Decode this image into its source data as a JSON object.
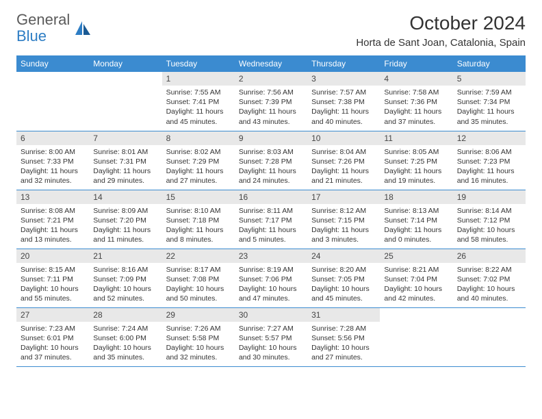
{
  "logo": {
    "line1": "General",
    "line2": "Blue"
  },
  "title": "October 2024",
  "location": "Horta de Sant Joan, Catalonia, Spain",
  "colors": {
    "header_bg": "#3b8bd0",
    "header_text": "#ffffff",
    "daynum_bg": "#e8e8e8",
    "border": "#3b8bd0",
    "logo_gray": "#5a5a5a",
    "logo_blue": "#2d7dc4"
  },
  "weekdays": [
    "Sunday",
    "Monday",
    "Tuesday",
    "Wednesday",
    "Thursday",
    "Friday",
    "Saturday"
  ],
  "weeks": [
    [
      {
        "blank": true
      },
      {
        "blank": true
      },
      {
        "num": "1",
        "sunrise": "Sunrise: 7:55 AM",
        "sunset": "Sunset: 7:41 PM",
        "daylight": "Daylight: 11 hours and 45 minutes."
      },
      {
        "num": "2",
        "sunrise": "Sunrise: 7:56 AM",
        "sunset": "Sunset: 7:39 PM",
        "daylight": "Daylight: 11 hours and 43 minutes."
      },
      {
        "num": "3",
        "sunrise": "Sunrise: 7:57 AM",
        "sunset": "Sunset: 7:38 PM",
        "daylight": "Daylight: 11 hours and 40 minutes."
      },
      {
        "num": "4",
        "sunrise": "Sunrise: 7:58 AM",
        "sunset": "Sunset: 7:36 PM",
        "daylight": "Daylight: 11 hours and 37 minutes."
      },
      {
        "num": "5",
        "sunrise": "Sunrise: 7:59 AM",
        "sunset": "Sunset: 7:34 PM",
        "daylight": "Daylight: 11 hours and 35 minutes."
      }
    ],
    [
      {
        "num": "6",
        "sunrise": "Sunrise: 8:00 AM",
        "sunset": "Sunset: 7:33 PM",
        "daylight": "Daylight: 11 hours and 32 minutes."
      },
      {
        "num": "7",
        "sunrise": "Sunrise: 8:01 AM",
        "sunset": "Sunset: 7:31 PM",
        "daylight": "Daylight: 11 hours and 29 minutes."
      },
      {
        "num": "8",
        "sunrise": "Sunrise: 8:02 AM",
        "sunset": "Sunset: 7:29 PM",
        "daylight": "Daylight: 11 hours and 27 minutes."
      },
      {
        "num": "9",
        "sunrise": "Sunrise: 8:03 AM",
        "sunset": "Sunset: 7:28 PM",
        "daylight": "Daylight: 11 hours and 24 minutes."
      },
      {
        "num": "10",
        "sunrise": "Sunrise: 8:04 AM",
        "sunset": "Sunset: 7:26 PM",
        "daylight": "Daylight: 11 hours and 21 minutes."
      },
      {
        "num": "11",
        "sunrise": "Sunrise: 8:05 AM",
        "sunset": "Sunset: 7:25 PM",
        "daylight": "Daylight: 11 hours and 19 minutes."
      },
      {
        "num": "12",
        "sunrise": "Sunrise: 8:06 AM",
        "sunset": "Sunset: 7:23 PM",
        "daylight": "Daylight: 11 hours and 16 minutes."
      }
    ],
    [
      {
        "num": "13",
        "sunrise": "Sunrise: 8:08 AM",
        "sunset": "Sunset: 7:21 PM",
        "daylight": "Daylight: 11 hours and 13 minutes."
      },
      {
        "num": "14",
        "sunrise": "Sunrise: 8:09 AM",
        "sunset": "Sunset: 7:20 PM",
        "daylight": "Daylight: 11 hours and 11 minutes."
      },
      {
        "num": "15",
        "sunrise": "Sunrise: 8:10 AM",
        "sunset": "Sunset: 7:18 PM",
        "daylight": "Daylight: 11 hours and 8 minutes."
      },
      {
        "num": "16",
        "sunrise": "Sunrise: 8:11 AM",
        "sunset": "Sunset: 7:17 PM",
        "daylight": "Daylight: 11 hours and 5 minutes."
      },
      {
        "num": "17",
        "sunrise": "Sunrise: 8:12 AM",
        "sunset": "Sunset: 7:15 PM",
        "daylight": "Daylight: 11 hours and 3 minutes."
      },
      {
        "num": "18",
        "sunrise": "Sunrise: 8:13 AM",
        "sunset": "Sunset: 7:14 PM",
        "daylight": "Daylight: 11 hours and 0 minutes."
      },
      {
        "num": "19",
        "sunrise": "Sunrise: 8:14 AM",
        "sunset": "Sunset: 7:12 PM",
        "daylight": "Daylight: 10 hours and 58 minutes."
      }
    ],
    [
      {
        "num": "20",
        "sunrise": "Sunrise: 8:15 AM",
        "sunset": "Sunset: 7:11 PM",
        "daylight": "Daylight: 10 hours and 55 minutes."
      },
      {
        "num": "21",
        "sunrise": "Sunrise: 8:16 AM",
        "sunset": "Sunset: 7:09 PM",
        "daylight": "Daylight: 10 hours and 52 minutes."
      },
      {
        "num": "22",
        "sunrise": "Sunrise: 8:17 AM",
        "sunset": "Sunset: 7:08 PM",
        "daylight": "Daylight: 10 hours and 50 minutes."
      },
      {
        "num": "23",
        "sunrise": "Sunrise: 8:19 AM",
        "sunset": "Sunset: 7:06 PM",
        "daylight": "Daylight: 10 hours and 47 minutes."
      },
      {
        "num": "24",
        "sunrise": "Sunrise: 8:20 AM",
        "sunset": "Sunset: 7:05 PM",
        "daylight": "Daylight: 10 hours and 45 minutes."
      },
      {
        "num": "25",
        "sunrise": "Sunrise: 8:21 AM",
        "sunset": "Sunset: 7:04 PM",
        "daylight": "Daylight: 10 hours and 42 minutes."
      },
      {
        "num": "26",
        "sunrise": "Sunrise: 8:22 AM",
        "sunset": "Sunset: 7:02 PM",
        "daylight": "Daylight: 10 hours and 40 minutes."
      }
    ],
    [
      {
        "num": "27",
        "sunrise": "Sunrise: 7:23 AM",
        "sunset": "Sunset: 6:01 PM",
        "daylight": "Daylight: 10 hours and 37 minutes."
      },
      {
        "num": "28",
        "sunrise": "Sunrise: 7:24 AM",
        "sunset": "Sunset: 6:00 PM",
        "daylight": "Daylight: 10 hours and 35 minutes."
      },
      {
        "num": "29",
        "sunrise": "Sunrise: 7:26 AM",
        "sunset": "Sunset: 5:58 PM",
        "daylight": "Daylight: 10 hours and 32 minutes."
      },
      {
        "num": "30",
        "sunrise": "Sunrise: 7:27 AM",
        "sunset": "Sunset: 5:57 PM",
        "daylight": "Daylight: 10 hours and 30 minutes."
      },
      {
        "num": "31",
        "sunrise": "Sunrise: 7:28 AM",
        "sunset": "Sunset: 5:56 PM",
        "daylight": "Daylight: 10 hours and 27 minutes."
      },
      {
        "blank": true
      },
      {
        "blank": true
      }
    ]
  ]
}
